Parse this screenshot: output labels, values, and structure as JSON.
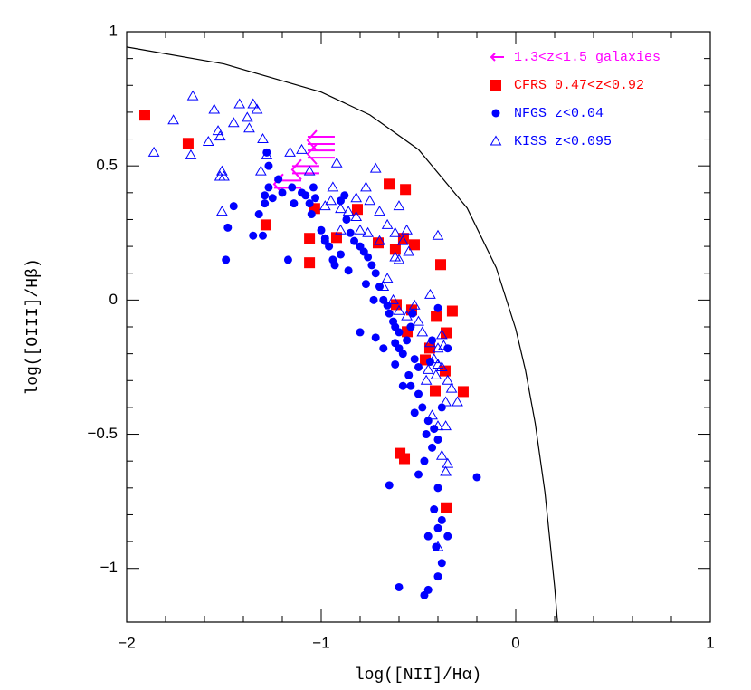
{
  "chart_data": {
    "type": "scatter",
    "x_label": "log([NII]/Hα)",
    "y_label": "log([OIII]/Hβ)",
    "xlim": [
      -2,
      1
    ],
    "ylim": [
      -1.2,
      1
    ],
    "xticks": [
      -2,
      -1,
      0,
      1
    ],
    "yticks": [
      -1,
      -0.5,
      0,
      0.5,
      1
    ],
    "legend": "upper right",
    "curve": {
      "color": "#000000",
      "x": [
        -2,
        -1.5,
        -1,
        -0.75,
        -0.5,
        -0.25,
        -0.1,
        0,
        0.05,
        0.1,
        0.15,
        0.2,
        0.215
      ],
      "y": [
        0.943,
        0.88,
        0.775,
        0.69,
        0.561,
        0.343,
        0.12,
        -0.108,
        -0.262,
        -0.459,
        -0.716,
        -1.069,
        -1.202
      ]
    },
    "series": [
      {
        "name": "1.3<z<1.5 galaxies",
        "color": "#ff00ff",
        "marker": "arrow",
        "x": [
          -1.07,
          -1.07,
          -1.149,
          -1.242
        ],
        "y": [
          0.595,
          0.544,
          0.486,
          0.432
        ]
      },
      {
        "name": "CFRS 0.47<z<0.92",
        "color": "#ff0000",
        "marker": "square",
        "x": [
          -1.907,
          -1.684,
          -1.284,
          -1.06,
          -1.06,
          -1.033,
          -0.921,
          -0.814,
          -0.707,
          -0.651,
          -0.567,
          -0.521,
          -0.577,
          -0.619,
          -0.386,
          -0.614,
          -0.535,
          -0.558,
          -0.326,
          -0.409,
          -0.442,
          -0.465,
          -0.358,
          -0.363,
          -0.414,
          -0.27,
          -0.595,
          -0.572,
          -0.358
        ],
        "y": [
          0.689,
          0.584,
          0.28,
          0.23,
          0.139,
          0.341,
          0.233,
          0.338,
          0.213,
          0.432,
          0.412,
          0.206,
          0.23,
          0.189,
          0.132,
          -0.017,
          -0.037,
          -0.118,
          -0.041,
          -0.061,
          -0.179,
          -0.223,
          -0.122,
          -0.264,
          -0.338,
          -0.341,
          -0.571,
          -0.591,
          -0.774
        ]
      },
      {
        "name": "NFGS z<0.04",
        "color": "#0000ff",
        "marker": "circle",
        "x": [
          -1.49,
          -1.48,
          -1.45,
          -1.35,
          -1.32,
          -1.3,
          -1.29,
          -1.29,
          -1.27,
          -1.25,
          -1.27,
          -1.28,
          -1.22,
          -1.2,
          -1.15,
          -1.14,
          -1.1,
          -1.08,
          -1.04,
          -1.03,
          -1.06,
          -1.17,
          -1.05,
          -1,
          -0.98,
          -0.96,
          -0.94,
          -0.93,
          -0.9,
          -0.9,
          -0.88,
          -0.87,
          -0.85,
          -0.83,
          -0.8,
          -0.78,
          -0.76,
          -0.74,
          -0.72,
          -0.7,
          -0.73,
          -0.68,
          -0.66,
          -0.65,
          -0.63,
          -0.62,
          -0.6,
          -0.62,
          -0.6,
          -0.58,
          -0.56,
          -0.54,
          -0.53,
          -0.52,
          -0.5,
          -0.62,
          -0.55,
          -0.54,
          -0.5,
          -0.48,
          -0.52,
          -0.45,
          -0.42,
          -0.4,
          -0.43,
          -0.47,
          -0.5,
          -0.4,
          -0.42,
          -0.38,
          -0.4,
          -0.45,
          -0.41,
          -0.38,
          -0.4,
          -0.45,
          -0.47,
          -0.6,
          -0.65,
          -0.2,
          -0.35,
          -0.8,
          -0.44,
          -0.4,
          -0.43,
          -0.35,
          -0.38,
          -0.46,
          -0.72,
          -0.98,
          -0.86,
          -0.77,
          -0.68,
          -0.58
        ],
        "y": [
          0.15,
          0.27,
          0.35,
          0.24,
          0.32,
          0.24,
          0.39,
          0.36,
          0.42,
          0.38,
          0.5,
          0.55,
          0.45,
          0.4,
          0.42,
          0.36,
          0.4,
          0.39,
          0.42,
          0.38,
          0.36,
          0.15,
          0.32,
          0.26,
          0.22,
          0.2,
          0.15,
          0.13,
          0.17,
          0.37,
          0.39,
          0.3,
          0.25,
          0.22,
          0.2,
          0.18,
          0.16,
          0.13,
          0.1,
          0.05,
          0,
          0,
          -0.02,
          -0.05,
          -0.08,
          -0.1,
          -0.12,
          -0.16,
          -0.18,
          -0.2,
          -0.15,
          -0.1,
          -0.05,
          -0.22,
          -0.25,
          -0.24,
          -0.28,
          -0.32,
          -0.35,
          -0.4,
          -0.42,
          -0.45,
          -0.48,
          -0.52,
          -0.55,
          -0.6,
          -0.65,
          -0.7,
          -0.78,
          -0.82,
          -0.85,
          -0.88,
          -0.92,
          -0.98,
          -1.03,
          -1.08,
          -1.1,
          -1.07,
          -0.69,
          -0.66,
          -0.88,
          -0.12,
          -0.23,
          -0.03,
          -0.15,
          -0.18,
          -0.4,
          -0.5,
          -0.14,
          0.23,
          0.11,
          0.06,
          -0.18,
          -0.32
        ]
      },
      {
        "name": "KISS z<0.095",
        "color": "#0000ff",
        "marker": "triangle",
        "x": [
          -1.86,
          -1.76,
          -1.67,
          -1.66,
          -1.58,
          -1.55,
          -1.53,
          -1.52,
          -1.51,
          -1.5,
          -1.52,
          -1.51,
          -1.45,
          -1.42,
          -1.38,
          -1.37,
          -1.35,
          -1.33,
          -1.3,
          -1.28,
          -1.31,
          -1.16,
          -1.1,
          -1.06,
          -0.95,
          -0.92,
          -0.9,
          -0.86,
          -0.82,
          -0.82,
          -0.77,
          -0.72,
          -0.75,
          -0.7,
          -0.66,
          -0.62,
          -0.6,
          -0.56,
          -0.58,
          -0.62,
          -0.66,
          -0.68,
          -0.63,
          -0.6,
          -0.56,
          -0.52,
          -0.5,
          -0.48,
          -0.44,
          -0.4,
          -0.38,
          -0.37,
          -0.42,
          -0.45,
          -0.4,
          -0.38,
          -0.41,
          -0.46,
          -0.35,
          -0.33,
          -0.3,
          -0.36,
          -0.43,
          -0.4,
          -0.38,
          -0.35,
          -0.36,
          -0.4,
          -0.4,
          -0.44,
          -0.55,
          -0.6,
          -0.8,
          -0.76,
          -0.7,
          -0.98,
          -0.9,
          -0.94,
          -0.36
        ],
        "y": [
          0.55,
          0.67,
          0.54,
          0.76,
          0.59,
          0.71,
          0.63,
          0.61,
          0.48,
          0.46,
          0.46,
          0.33,
          0.66,
          0.73,
          0.68,
          0.64,
          0.73,
          0.71,
          0.6,
          0.54,
          0.48,
          0.55,
          0.56,
          0.48,
          0.37,
          0.51,
          0.34,
          0.33,
          0.38,
          0.31,
          0.42,
          0.49,
          0.37,
          0.33,
          0.28,
          0.25,
          0.35,
          0.26,
          0.22,
          0.16,
          0.08,
          0.05,
          0,
          -0.04,
          -0.06,
          -0.02,
          -0.08,
          -0.12,
          -0.16,
          -0.18,
          -0.13,
          -0.17,
          -0.22,
          -0.26,
          -0.24,
          -0.25,
          -0.28,
          -0.3,
          -0.3,
          -0.33,
          -0.38,
          -0.38,
          -0.43,
          -0.47,
          -0.58,
          -0.61,
          -0.64,
          -0.92,
          0.24,
          0.02,
          0.18,
          0.15,
          0.26,
          0.25,
          0.22,
          0.35,
          0.26,
          0.42,
          -0.47
        ]
      }
    ]
  }
}
